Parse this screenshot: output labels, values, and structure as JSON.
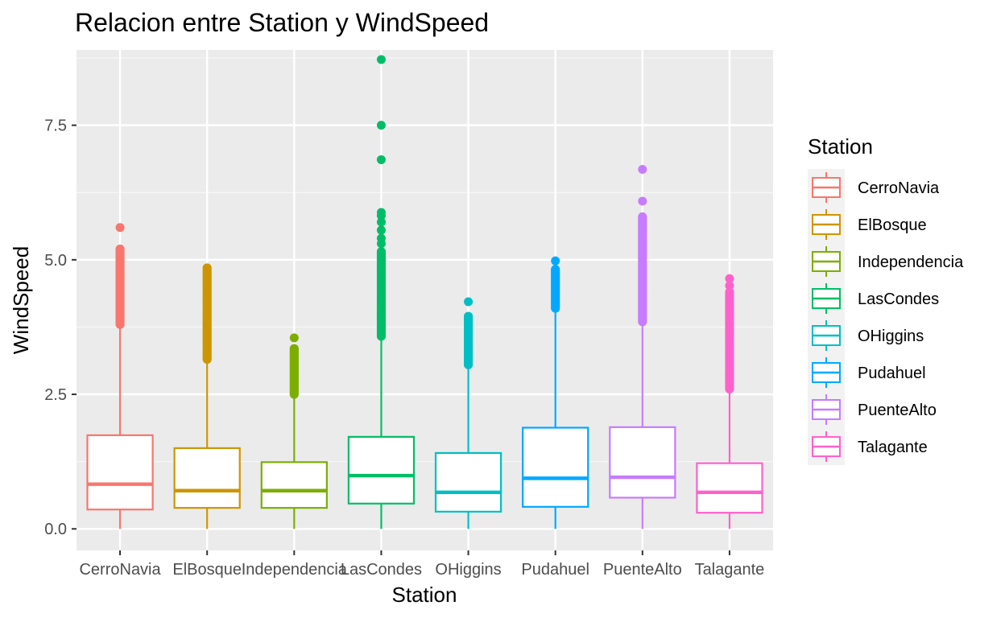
{
  "chart_data": {
    "type": "boxplot",
    "title": "Relacion entre Station y WindSpeed",
    "xlabel": "Station",
    "ylabel": "WindSpeed",
    "ylim": [
      -0.4,
      8.9
    ],
    "yticks": [
      0.0,
      2.5,
      5.0,
      7.5
    ],
    "ytick_labels": [
      "0.0",
      "2.5",
      "5.0",
      "7.5"
    ],
    "grid": true,
    "legend": {
      "title": "Station",
      "position": "right"
    },
    "categories": [
      "CerroNavia",
      "ElBosque",
      "Independencia",
      "LasCondes",
      "OHiggins",
      "Pudahuel",
      "PuenteAlto",
      "Talagante"
    ],
    "series": [
      {
        "name": "CerroNavia",
        "color": "#F8766D",
        "q1": 0.36,
        "median": 0.83,
        "q3": 1.74,
        "whisker_low": 0.0,
        "whisker_high": 3.8,
        "outlier_range": [
          3.8,
          5.2
        ],
        "outliers": [
          5.6
        ]
      },
      {
        "name": "ElBosque",
        "color": "#CD9600",
        "q1": 0.39,
        "median": 0.71,
        "q3": 1.5,
        "whisker_low": 0.0,
        "whisker_high": 3.15,
        "outlier_range": [
          3.15,
          4.85
        ],
        "outliers": []
      },
      {
        "name": "Independencia",
        "color": "#7CAE00",
        "q1": 0.39,
        "median": 0.71,
        "q3": 1.24,
        "whisker_low": 0.0,
        "whisker_high": 2.5,
        "outlier_range": [
          2.5,
          3.35
        ],
        "outliers": [
          3.55
        ]
      },
      {
        "name": "LasCondes",
        "color": "#00BE67",
        "q1": 0.47,
        "median": 0.99,
        "q3": 1.71,
        "whisker_low": 0.0,
        "whisker_high": 3.58,
        "outlier_range": [
          3.58,
          5.15
        ],
        "outliers": [
          5.3,
          5.4,
          5.55,
          5.7,
          5.82,
          5.88,
          6.86,
          7.5,
          8.72
        ]
      },
      {
        "name": "OHiggins",
        "color": "#00BFC4",
        "q1": 0.32,
        "median": 0.68,
        "q3": 1.41,
        "whisker_low": 0.0,
        "whisker_high": 3.05,
        "outlier_range": [
          3.05,
          3.95
        ],
        "outliers": [
          4.22
        ]
      },
      {
        "name": "Pudahuel",
        "color": "#00A9FF",
        "q1": 0.41,
        "median": 0.94,
        "q3": 1.88,
        "whisker_low": 0.0,
        "whisker_high": 4.1,
        "outlier_range": [
          4.1,
          4.82
        ],
        "outliers": [
          4.98
        ]
      },
      {
        "name": "PuenteAlto",
        "color": "#C77CFF",
        "q1": 0.58,
        "median": 0.96,
        "q3": 1.89,
        "whisker_low": 0.0,
        "whisker_high": 3.85,
        "outlier_range": [
          3.85,
          5.8
        ],
        "outliers": [
          6.09,
          6.68
        ]
      },
      {
        "name": "Talagante",
        "color": "#FF61CC",
        "q1": 0.3,
        "median": 0.68,
        "q3": 1.22,
        "whisker_low": 0.0,
        "whisker_high": 2.6,
        "outlier_range": [
          2.6,
          4.4
        ],
        "outliers": [
          4.52,
          4.65
        ]
      }
    ]
  }
}
